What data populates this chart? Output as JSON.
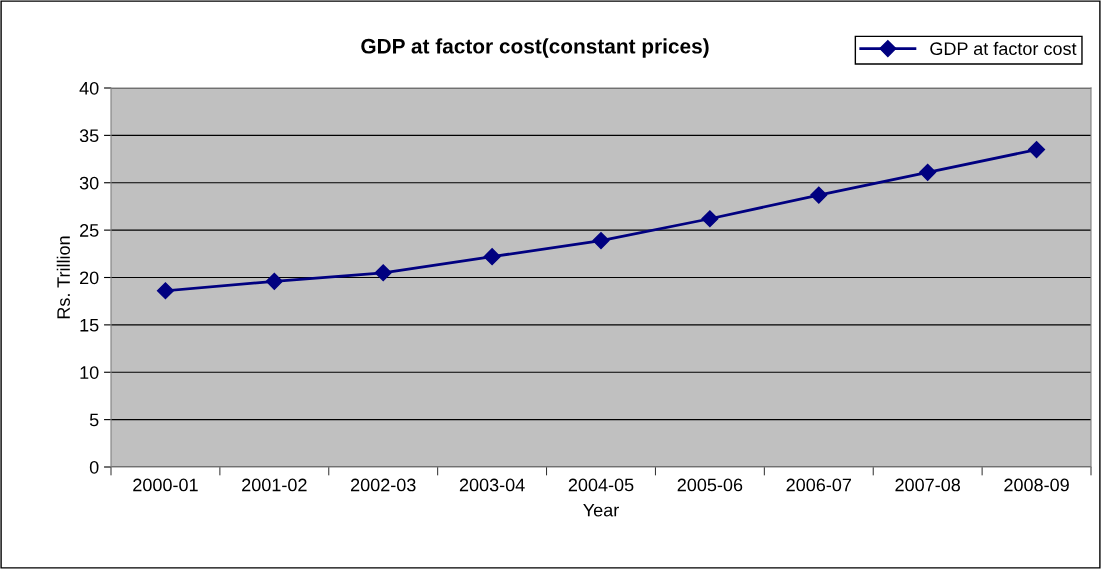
{
  "chart_data": {
    "type": "line",
    "title": "GDP at factor cost(constant prices)",
    "xlabel": "Year",
    "ylabel": "Rs. Trillion",
    "categories": [
      "2000-01",
      "2001-02",
      "2002-03",
      "2003-04",
      "2004-05",
      "2005-06",
      "2006-07",
      "2007-08",
      "2008-09"
    ],
    "series": [
      {
        "name": "GDP at factor cost",
        "color": "#000080",
        "values": [
          18.6,
          19.6,
          20.5,
          22.2,
          23.9,
          26.2,
          28.7,
          31.1,
          33.5
        ]
      }
    ],
    "ylim": [
      0,
      40
    ],
    "yticks": [
      0,
      5,
      10,
      15,
      20,
      25,
      30,
      35,
      40
    ],
    "grid": "y",
    "legend": "top right",
    "marker": "diamond",
    "line_style": "solid"
  }
}
